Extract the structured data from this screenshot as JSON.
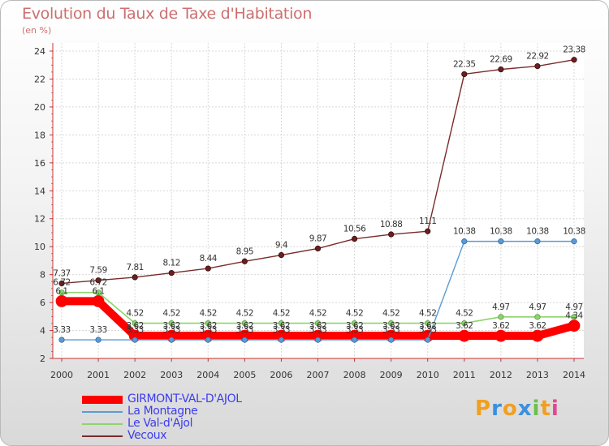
{
  "header": {
    "title": "Evolution du Taux de Taxe d'Habitation",
    "unit": "(en %)"
  },
  "chart_data": {
    "type": "line",
    "x": [
      "2000",
      "2001",
      "2002",
      "2003",
      "2004",
      "2005",
      "2006",
      "2007",
      "2008",
      "2009",
      "2010",
      "2011",
      "2012",
      "2013",
      "2014"
    ],
    "ylim": [
      2,
      24
    ],
    "yticks": [
      "2",
      "4",
      "6",
      "8",
      "10",
      "12",
      "14",
      "16",
      "18",
      "20",
      "22",
      "24"
    ],
    "series": [
      {
        "name": "GIRMONT-VAL-D'AJOL",
        "color": "#ff0000",
        "values": [
          6.1,
          6.1,
          3.62,
          3.62,
          3.62,
          3.62,
          3.62,
          3.62,
          3.62,
          3.62,
          3.62,
          3.62,
          3.62,
          3.62,
          4.34
        ],
        "labels": [
          "6.1",
          "6.1",
          "3.62",
          "3.62",
          "3.62",
          "3.62",
          "3.62",
          "3.62",
          "3.62",
          "3.62",
          "3.62",
          "3.62",
          "3.62",
          "3.62",
          "4.34"
        ]
      },
      {
        "name": "La Montagne",
        "color": "#5b9bd5",
        "values": [
          3.33,
          3.33,
          3.33,
          3.33,
          3.33,
          3.33,
          3.33,
          3.33,
          3.33,
          3.33,
          3.33,
          10.38,
          10.38,
          10.38,
          10.38
        ],
        "labels": [
          "3.33",
          "3.33",
          "3.33",
          "3.33",
          "3.33",
          "3.33",
          "3.33",
          "3.33",
          "3.33",
          "3.33",
          "3.33",
          "10.38",
          "10.38",
          "10.38",
          "10.38"
        ]
      },
      {
        "name": "Le Val-d'Ajol",
        "color": "#8ed46b",
        "values": [
          6.72,
          6.72,
          4.52,
          4.52,
          4.52,
          4.52,
          4.52,
          4.52,
          4.52,
          4.52,
          4.52,
          4.52,
          4.97,
          4.97,
          4.97
        ],
        "labels": [
          "6.72",
          "6.72",
          "4.52",
          "4.52",
          "4.52",
          "4.52",
          "4.52",
          "4.52",
          "4.52",
          "4.52",
          "4.52",
          "4.52",
          "4.97",
          "4.97",
          "4.97"
        ]
      },
      {
        "name": "Vecoux",
        "color": "#7a2b2b",
        "values": [
          7.37,
          7.59,
          7.81,
          8.12,
          8.44,
          8.95,
          9.4,
          9.87,
          10.56,
          10.88,
          11.1,
          22.35,
          22.69,
          22.92,
          23.38
        ],
        "labels": [
          "7.37",
          "7.59",
          "7.81",
          "8.12",
          "8.44",
          "8.95",
          "9.4",
          "9.87",
          "10.56",
          "10.88",
          "11.1",
          "22.35",
          "22.69",
          "22.92",
          "23.38"
        ]
      }
    ]
  },
  "logo": {
    "letters": [
      "P",
      "r",
      "o",
      "x",
      "i",
      "t",
      "i"
    ],
    "colors": [
      "#f0a020",
      "#3a8fe0",
      "#f0a020",
      "#3a8fe0",
      "#6cc04a",
      "#f0a020",
      "#e04a8f"
    ]
  }
}
